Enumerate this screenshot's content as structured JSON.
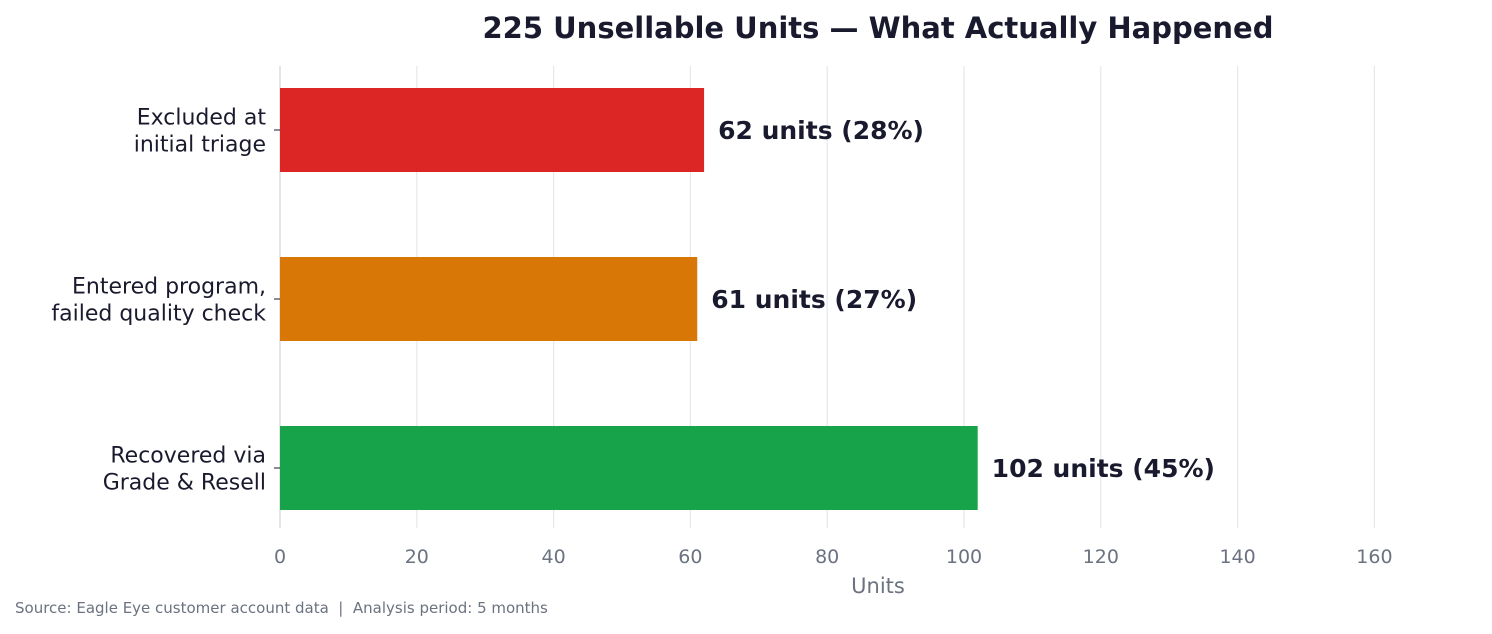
{
  "chart_data": {
    "type": "bar",
    "orientation": "horizontal",
    "title": "225 Unsellable Units — What Actually Happened",
    "xlabel": "Units",
    "ylabel": "",
    "xlim": [
      0,
      175
    ],
    "xticks": [
      0,
      20,
      40,
      60,
      80,
      100,
      120,
      140,
      160
    ],
    "grid": "vertical",
    "categories": [
      [
        "Excluded at",
        "initial triage"
      ],
      [
        "Entered program,",
        "failed quality check"
      ],
      [
        "Recovered via",
        "Grade & Resell"
      ]
    ],
    "values": [
      62,
      61,
      102
    ],
    "data_labels": [
      "62 units  (28%)",
      "61 units  (27%)",
      "102 units  (45%)"
    ],
    "colors": [
      "#dc2626",
      "#d97706",
      "#16a34a"
    ]
  },
  "footer": {
    "source": "Source: Eagle Eye customer account data  |  Analysis period: 5 months"
  }
}
